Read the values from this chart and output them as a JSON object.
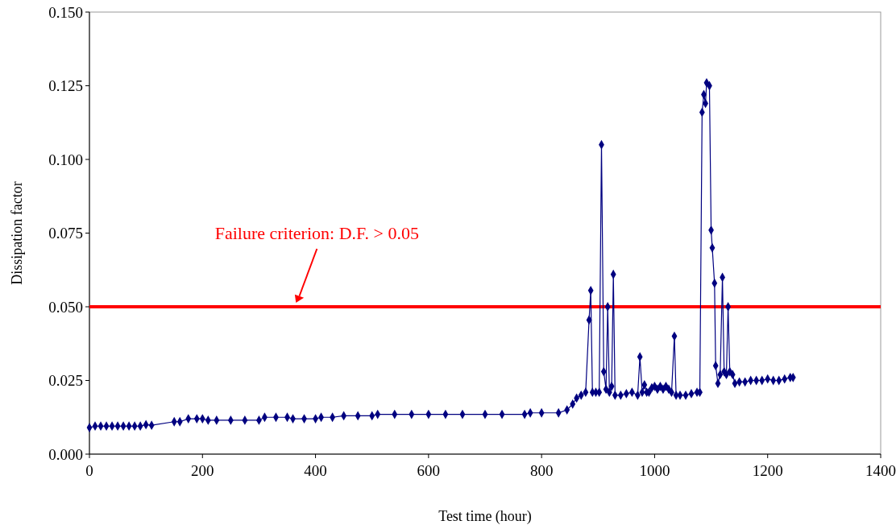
{
  "chart_data": {
    "type": "line",
    "xlabel": "Test time (hour)",
    "ylabel": "Dissipation factor",
    "xlim": [
      0,
      1400
    ],
    "xticks": [
      0,
      200,
      400,
      600,
      800,
      1000,
      1200,
      1400
    ],
    "ylim": [
      0,
      0.15
    ],
    "yticks": [
      {
        "value": 0,
        "label": "0.000"
      },
      {
        "value": 0.025,
        "label": "0.025"
      },
      {
        "value": 0.05,
        "label": "0.050"
      },
      {
        "value": 0.075,
        "label": "0.075"
      },
      {
        "value": 0.1,
        "label": "0.100"
      },
      {
        "value": 0.125,
        "label": "0.125"
      },
      {
        "value": 0.15,
        "label": "0.150"
      }
    ],
    "grid": false,
    "marker": "diamond",
    "line_style": "solid",
    "ref_lines": [
      {
        "axis": "y",
        "value": 0.05,
        "color": "#ff0000",
        "label": "Failure criterion: D.F. > 0.05"
      }
    ],
    "series": [
      {
        "color": "#000080",
        "x": [
          0,
          10,
          20,
          30,
          40,
          50,
          60,
          70,
          80,
          90,
          100,
          110,
          150,
          160,
          175,
          190,
          200,
          210,
          225,
          250,
          275,
          300,
          310,
          330,
          350,
          360,
          380,
          400,
          410,
          430,
          450,
          475,
          500,
          510,
          540,
          570,
          600,
          630,
          660,
          700,
          730,
          770,
          780,
          800,
          830,
          845,
          855,
          862,
          870,
          878,
          884,
          887,
          890,
          896,
          902,
          906,
          910,
          914,
          917,
          920,
          924,
          927,
          930,
          940,
          950,
          960,
          970,
          974,
          978,
          982,
          986,
          990,
          995,
          1000,
          1005,
          1010,
          1015,
          1020,
          1025,
          1030,
          1035,
          1038,
          1045,
          1055,
          1065,
          1075,
          1080,
          1084,
          1087,
          1090,
          1092,
          1097,
          1100,
          1102,
          1106,
          1108,
          1112,
          1116,
          1120,
          1123,
          1127,
          1130,
          1133,
          1138,
          1142,
          1150,
          1160,
          1170,
          1180,
          1190,
          1200,
          1210,
          1220,
          1230,
          1240,
          1245
        ],
        "values": [
          0.009,
          0.0095,
          0.0095,
          0.0095,
          0.0095,
          0.0095,
          0.0095,
          0.0095,
          0.0095,
          0.0095,
          0.01,
          0.0098,
          0.011,
          0.011,
          0.012,
          0.012,
          0.012,
          0.0115,
          0.0115,
          0.0115,
          0.0115,
          0.0115,
          0.0125,
          0.0125,
          0.0125,
          0.012,
          0.012,
          0.012,
          0.0125,
          0.0125,
          0.013,
          0.013,
          0.013,
          0.0135,
          0.0135,
          0.0135,
          0.0135,
          0.0135,
          0.0135,
          0.0135,
          0.0135,
          0.0135,
          0.014,
          0.014,
          0.014,
          0.015,
          0.017,
          0.019,
          0.02,
          0.021,
          0.0455,
          0.0555,
          0.021,
          0.021,
          0.021,
          0.105,
          0.028,
          0.022,
          0.05,
          0.021,
          0.023,
          0.061,
          0.02,
          0.02,
          0.0205,
          0.021,
          0.02,
          0.033,
          0.021,
          0.0235,
          0.021,
          0.021,
          0.0225,
          0.023,
          0.022,
          0.023,
          0.022,
          0.023,
          0.022,
          0.021,
          0.04,
          0.02,
          0.02,
          0.02,
          0.0205,
          0.021,
          0.021,
          0.116,
          0.122,
          0.119,
          0.126,
          0.125,
          0.076,
          0.07,
          0.058,
          0.03,
          0.024,
          0.027,
          0.06,
          0.028,
          0.027,
          0.05,
          0.028,
          0.027,
          0.024,
          0.0245,
          0.0245,
          0.025,
          0.025,
          0.025,
          0.0255,
          0.025,
          0.025,
          0.0255,
          0.026,
          0.026
        ]
      }
    ]
  }
}
